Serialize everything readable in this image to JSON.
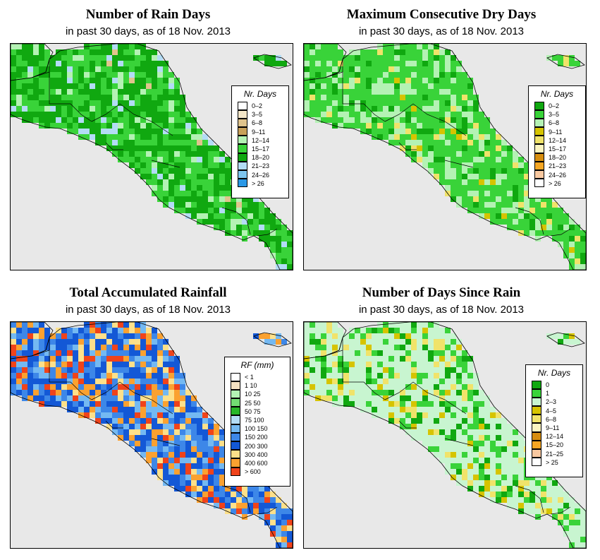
{
  "panels": [
    {
      "id": "rain-days",
      "title": "Number of Rain Days",
      "subtitle": "in past 30 days, as of  18 Nov. 2013",
      "legend": {
        "heading": "Nr. Days",
        "items": [
          {
            "label": "0–2",
            "color": "#ffffff"
          },
          {
            "label": "3–5",
            "color": "#f3e6c8"
          },
          {
            "label": "6–8",
            "color": "#e0c48d"
          },
          {
            "label": "9–11",
            "color": "#c9a15a"
          },
          {
            "label": "12–14",
            "color": "#b4f2b4"
          },
          {
            "label": "15–17",
            "color": "#39d339"
          },
          {
            "label": "18–20",
            "color": "#10a810"
          },
          {
            "label": "21–23",
            "color": "#b3dcf5"
          },
          {
            "label": "24–26",
            "color": "#7fc6ef"
          },
          {
            "label": "> 26",
            "color": "#2b98e6"
          }
        ]
      }
    },
    {
      "id": "dry-days",
      "title": "Maximum Consecutive Dry Days",
      "subtitle": "in past 30 days, as of  18 Nov. 2013",
      "legend": {
        "heading": "Nr. Days",
        "items": [
          {
            "label": "0–2",
            "color": "#10a810"
          },
          {
            "label": "3–5",
            "color": "#39d339"
          },
          {
            "label": "6–8",
            "color": "#b4f2b4"
          },
          {
            "label": "9–11",
            "color": "#d6c400"
          },
          {
            "label": "12–14",
            "color": "#f0e36a"
          },
          {
            "label": "15–17",
            "color": "#fbf4c0"
          },
          {
            "label": "18–20",
            "color": "#d68d0f"
          },
          {
            "label": "21–23",
            "color": "#f5a623"
          },
          {
            "label": "24–26",
            "color": "#f8c8a0"
          },
          {
            "label": "> 26",
            "color": "#ffffff"
          }
        ]
      }
    },
    {
      "id": "rainfall",
      "title": "Total Accumulated Rainfall",
      "subtitle": "in past 30 days, as of  18 Nov. 2013",
      "legend": {
        "heading": "RF (mm)",
        "items": [
          {
            "label": "< 1",
            "color": "#ffffff"
          },
          {
            "label": "1  10",
            "color": "#f3e1c2"
          },
          {
            "label": "10  25",
            "color": "#b4f2b4"
          },
          {
            "label": "25  50",
            "color": "#72dd72"
          },
          {
            "label": "50  75",
            "color": "#28b628"
          },
          {
            "label": "75  100",
            "color": "#b3dcf5"
          },
          {
            "label": "100  150",
            "color": "#74b9f2"
          },
          {
            "label": "150  200",
            "color": "#3d87e8"
          },
          {
            "label": "200  300",
            "color": "#1358d6"
          },
          {
            "label": "300  400",
            "color": "#fde08a"
          },
          {
            "label": "400  600",
            "color": "#fba130"
          },
          {
            "label": "> 600",
            "color": "#f0431a"
          }
        ]
      }
    },
    {
      "id": "since-rain",
      "title": "Number of Days Since Rain",
      "subtitle": "in past 30 days, as of  18 Nov. 2013",
      "legend": {
        "heading": "Nr. Days",
        "items": [
          {
            "label": "0",
            "color": "#10a810"
          },
          {
            "label": "1",
            "color": "#39d339"
          },
          {
            "label": "2–3",
            "color": "#c8f5d0"
          },
          {
            "label": "4–5",
            "color": "#d6c400"
          },
          {
            "label": "6–8",
            "color": "#f0e36a"
          },
          {
            "label": "9–11",
            "color": "#fbf4c0"
          },
          {
            "label": "12–14",
            "color": "#d68d0f"
          },
          {
            "label": "15–20",
            "color": "#f5a623"
          },
          {
            "label": "21–25",
            "color": "#f8c8a0"
          },
          {
            "label": "> 25",
            "color": "#ffffff"
          }
        ]
      }
    }
  ]
}
